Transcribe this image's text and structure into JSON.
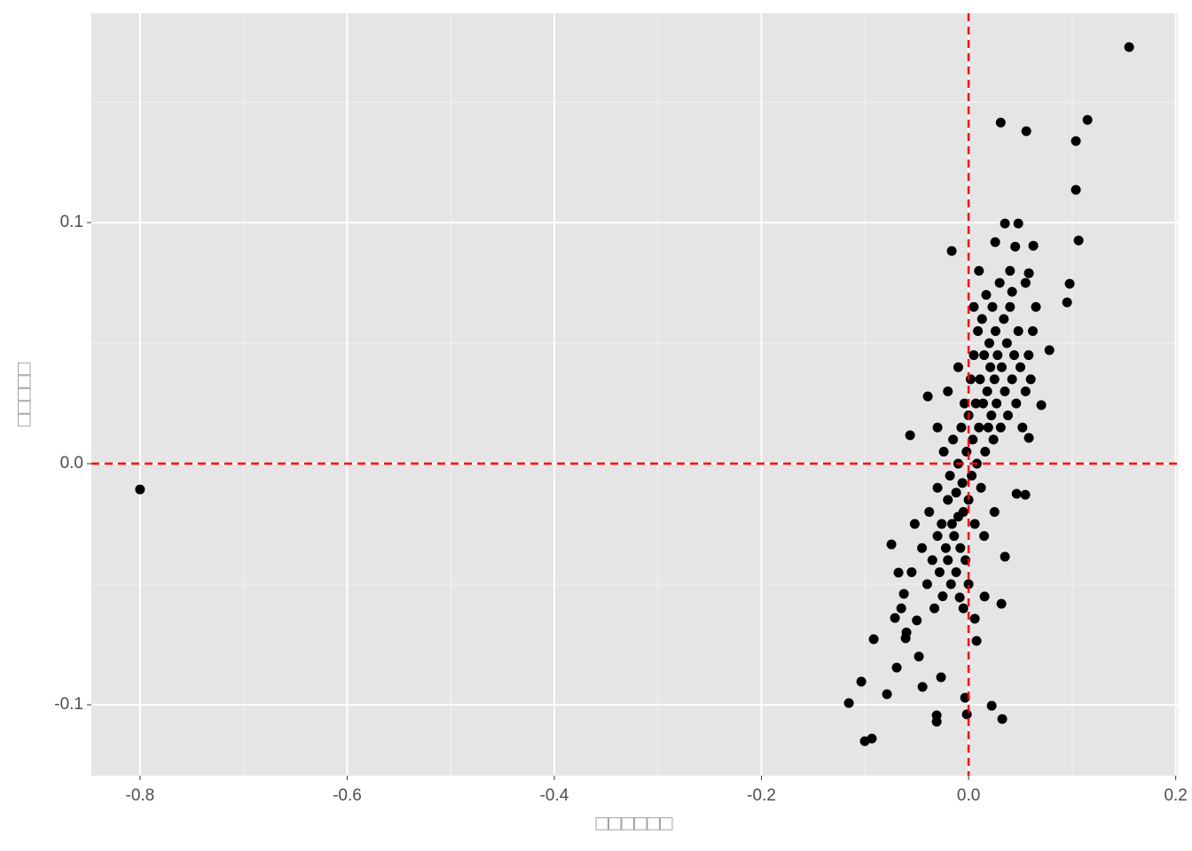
{
  "chart_data": {
    "type": "scatter",
    "xlabel": "□□□□□□",
    "ylabel": "□□□□□",
    "color": "#000000",
    "xlim": [
      -0.847,
      0.202
    ],
    "ylim": [
      -0.1294,
      0.1868
    ],
    "xticks": [
      -0.8,
      -0.6,
      -0.4,
      -0.2,
      {
        "value": 0,
        "label": "0.0"
      },
      0.2
    ],
    "yticks": [
      -0.1,
      {
        "value": 0,
        "label": "0.0"
      },
      0.1
    ],
    "xminorticks": [
      -0.7,
      -0.5,
      -0.3,
      -0.1,
      0.1
    ],
    "yminorticks": [
      -0.05,
      0.05,
      0.15
    ],
    "grid": true,
    "hlines": [
      0
    ],
    "vlines": [
      0
    ],
    "refline_color": "#ff0000",
    "x": [
      -0.8,
      0.155,
      0.031,
      0.0557,
      0.1148,
      0.1036,
      0.1036,
      0.1062,
      0.0976,
      0.0951,
      0.078,
      0.0702,
      0.0582,
      -0.1156,
      -0.1036,
      -0.1002,
      -0.0934,
      -0.0916,
      -0.0788,
      -0.0308,
      -0.0308,
      -0.0017,
      -0.0034,
      0.0223,
      0.0325,
      -0.0266,
      -0.0445,
      0.006,
      0.0077,
      0.0317,
      0.0351,
      -0.0565,
      -0.0163,
      -0.0394,
      0.0351,
      0.048,
      0.0625,
      0.0257,
      0.0582,
      0.042,
      -0.0745,
      -0.0677,
      -0.0625,
      -0.0711,
      -0.0608,
      -0.0694,
      0.0548,
      0.0463,
      0.0154,
      -0.0086,
      -0.045,
      -0.04,
      -0.038,
      -0.035,
      -0.033,
      -0.03,
      -0.03,
      -0.028,
      -0.026,
      -0.025,
      -0.024,
      -0.022,
      -0.02,
      -0.02,
      -0.018,
      -0.017,
      -0.016,
      -0.015,
      -0.014,
      -0.012,
      -0.012,
      -0.01,
      -0.01,
      -0.008,
      -0.007,
      -0.006,
      -0.005,
      -0.004,
      -0.003,
      -0.002,
      0.0,
      0.0,
      0.002,
      0.003,
      0.004,
      0.005,
      0.006,
      0.007,
      0.008,
      0.009,
      0.01,
      0.011,
      0.012,
      0.013,
      0.014,
      0.015,
      0.016,
      0.017,
      0.018,
      0.019,
      0.02,
      0.021,
      0.022,
      0.023,
      0.024,
      0.025,
      0.026,
      0.027,
      0.028,
      0.03,
      0.031,
      0.032,
      0.034,
      0.035,
      0.037,
      0.038,
      0.04,
      0.042,
      0.044,
      0.046,
      0.048,
      0.05,
      0.052,
      0.055,
      0.058,
      0.06,
      0.062,
      0.065,
      -0.05,
      -0.055,
      -0.06,
      -0.048,
      -0.052,
      -0.065,
      0.01,
      0.005,
      -0.01,
      -0.02,
      -0.03,
      0.015,
      0.025,
      0.0,
      -0.005,
      0.04,
      0.045,
      0.055
    ],
    "values": [
      -0.0107,
      0.1728,
      0.1415,
      0.1379,
      0.1426,
      0.1338,
      0.1136,
      0.0926,
      0.0746,
      0.0669,
      0.0471,
      0.0243,
      0.0107,
      -0.0993,
      -0.0904,
      -0.1151,
      -0.114,
      -0.0728,
      -0.0956,
      -0.107,
      -0.1044,
      -0.104,
      -0.0971,
      -0.1004,
      -0.1059,
      -0.0886,
      -0.0926,
      -0.0643,
      -0.0735,
      -0.0581,
      -0.0386,
      0.0118,
      0.0882,
      0.0279,
      0.0996,
      0.0996,
      0.0904,
      0.0919,
      0.079,
      0.0713,
      -0.0335,
      -0.0452,
      -0.054,
      -0.064,
      -0.0724,
      -0.0846,
      -0.0129,
      -0.0125,
      -0.0551,
      -0.0555,
      -0.035,
      -0.05,
      -0.02,
      -0.04,
      -0.06,
      -0.03,
      -0.01,
      -0.045,
      -0.025,
      -0.055,
      0.005,
      -0.035,
      -0.015,
      -0.04,
      -0.005,
      -0.05,
      -0.025,
      0.01,
      -0.03,
      -0.012,
      -0.045,
      0.0,
      -0.022,
      -0.035,
      0.015,
      -0.008,
      -0.02,
      0.025,
      -0.04,
      0.005,
      -0.015,
      0.02,
      0.035,
      -0.005,
      0.01,
      0.045,
      -0.025,
      0.025,
      0.0,
      0.055,
      0.015,
      0.035,
      -0.01,
      0.06,
      0.025,
      0.045,
      0.005,
      0.07,
      0.03,
      0.015,
      0.05,
      0.04,
      0.02,
      0.065,
      0.01,
      0.035,
      0.055,
      0.025,
      0.045,
      0.075,
      0.015,
      0.04,
      0.06,
      0.03,
      0.05,
      0.02,
      0.065,
      0.035,
      0.045,
      0.025,
      0.055,
      0.04,
      0.015,
      0.03,
      0.045,
      0.035,
      0.055,
      0.065,
      -0.065,
      -0.045,
      -0.07,
      -0.08,
      -0.025,
      -0.06,
      0.08,
      0.065,
      0.04,
      0.03,
      0.015,
      -0.03,
      -0.02,
      -0.05,
      -0.06,
      0.08,
      0.09,
      0.075
    ]
  }
}
